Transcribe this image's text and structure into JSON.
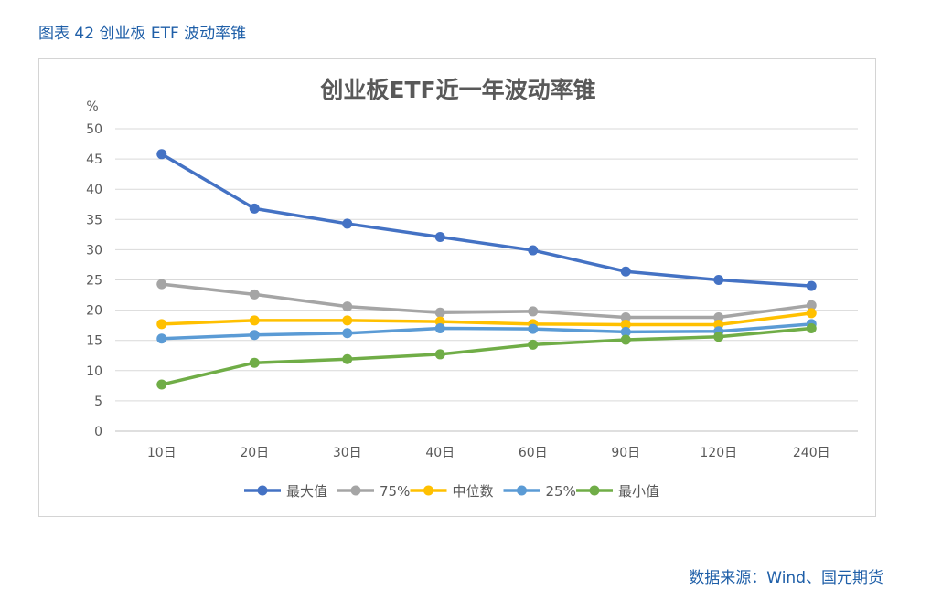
{
  "figure_caption": "图表 42 创业板 ETF 波动率锥",
  "source": "数据来源：Wind、国元期货",
  "chart_data": {
    "type": "line",
    "title": "创业板ETF近一年波动率锥",
    "ylabel": "%",
    "xlabel": "",
    "ylim": [
      0,
      50
    ],
    "yticks": [
      0,
      5,
      10,
      15,
      20,
      25,
      30,
      35,
      40,
      45,
      50
    ],
    "grid": true,
    "legend_position": "bottom",
    "categories": [
      "10日",
      "20日",
      "30日",
      "40日",
      "60日",
      "90日",
      "120日",
      "240日"
    ],
    "series": [
      {
        "name": "最大值",
        "color": "#4472c4",
        "values": [
          45.8,
          36.8,
          34.3,
          32.1,
          29.9,
          26.4,
          25.0,
          24.0
        ]
      },
      {
        "name": "75%",
        "color": "#a5a5a5",
        "values": [
          24.3,
          22.6,
          20.6,
          19.6,
          19.8,
          18.8,
          18.8,
          20.8
        ]
      },
      {
        "name": "中位数",
        "color": "#ffc000",
        "values": [
          17.7,
          18.3,
          18.3,
          18.1,
          17.7,
          17.6,
          17.6,
          19.5
        ]
      },
      {
        "name": "25%",
        "color": "#5b9bd5",
        "values": [
          15.3,
          15.9,
          16.2,
          17.0,
          16.9,
          16.4,
          16.5,
          17.7
        ]
      },
      {
        "name": "最小值",
        "color": "#70ad47",
        "values": [
          7.7,
          11.3,
          11.9,
          12.7,
          14.3,
          15.1,
          15.6,
          17.0
        ]
      }
    ]
  }
}
